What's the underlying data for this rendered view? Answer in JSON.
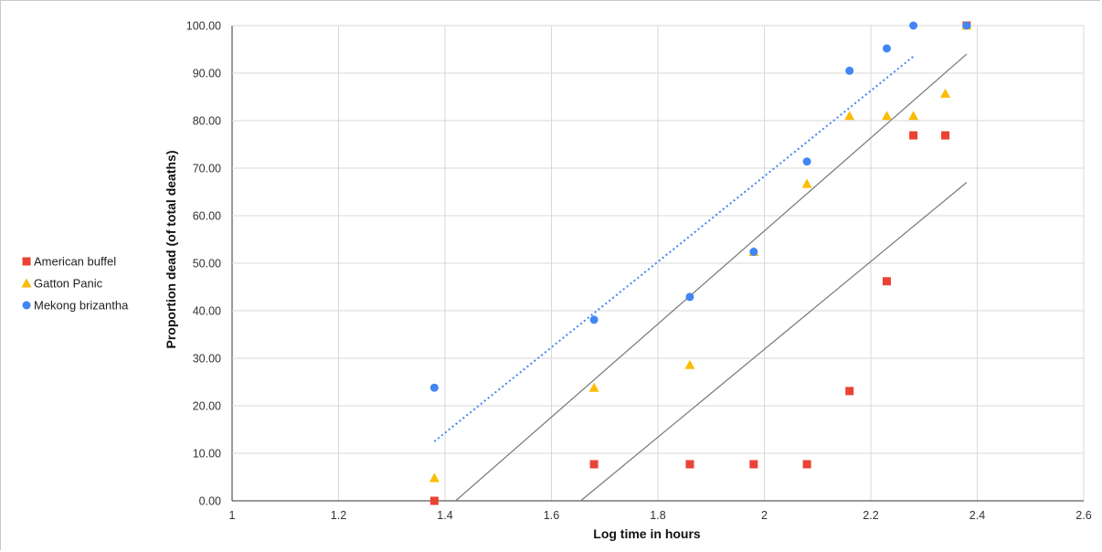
{
  "chart_data": {
    "type": "scatter",
    "xlabel": "Log time in hours",
    "ylabel": "Proportion dead (of total deaths)",
    "xlim": [
      1,
      2.6
    ],
    "ylim": [
      0,
      100
    ],
    "x_ticks": [
      "1",
      "1.2",
      "1.4",
      "1.6",
      "1.8",
      "2",
      "2.2",
      "2.4",
      "2.6"
    ],
    "y_ticks": [
      "0.00",
      "10.00",
      "20.00",
      "30.00",
      "40.00",
      "50.00",
      "60.00",
      "70.00",
      "80.00",
      "90.00",
      "100.00"
    ],
    "grid": true,
    "legend_position": "left",
    "series": [
      {
        "name": "American buffel",
        "marker": "square",
        "color": "#ea4335",
        "points": [
          [
            1.38,
            0
          ],
          [
            1.68,
            7.7
          ],
          [
            1.86,
            7.7
          ],
          [
            1.98,
            7.7
          ],
          [
            2.08,
            7.7
          ],
          [
            2.16,
            23.1
          ],
          [
            2.23,
            46.2
          ],
          [
            2.28,
            76.9
          ],
          [
            2.34,
            76.9
          ],
          [
            2.38,
            100
          ]
        ]
      },
      {
        "name": "Gatton Panic",
        "marker": "triangle",
        "color": "#fbbc04",
        "points": [
          [
            1.38,
            4.8
          ],
          [
            1.68,
            23.8
          ],
          [
            1.86,
            28.6
          ],
          [
            1.98,
            52.4
          ],
          [
            2.08,
            66.7
          ],
          [
            2.16,
            81.0
          ],
          [
            2.23,
            81.0
          ],
          [
            2.28,
            81.0
          ],
          [
            2.34,
            85.7
          ],
          [
            2.38,
            100
          ]
        ]
      },
      {
        "name": "Mekong brizantha",
        "marker": "circle",
        "color": "#4285f4",
        "points": [
          [
            1.38,
            23.8
          ],
          [
            1.68,
            38.1
          ],
          [
            1.86,
            42.9
          ],
          [
            1.98,
            52.4
          ],
          [
            2.08,
            71.4
          ],
          [
            2.16,
            90.5
          ],
          [
            2.23,
            95.2
          ],
          [
            2.28,
            100
          ],
          [
            2.38,
            100
          ]
        ]
      }
    ],
    "lines": [
      {
        "style": "dotted",
        "color": "#4285f4",
        "points": [
          [
            1.38,
            12.5
          ],
          [
            2.28,
            93.5
          ]
        ]
      },
      {
        "style": "solid",
        "color": "#777777",
        "points": [
          [
            1.42,
            0
          ],
          [
            2.38,
            94.0
          ]
        ]
      },
      {
        "style": "solid",
        "color": "#777777",
        "points": [
          [
            1.655,
            0
          ],
          [
            2.38,
            67.0
          ]
        ]
      }
    ]
  }
}
